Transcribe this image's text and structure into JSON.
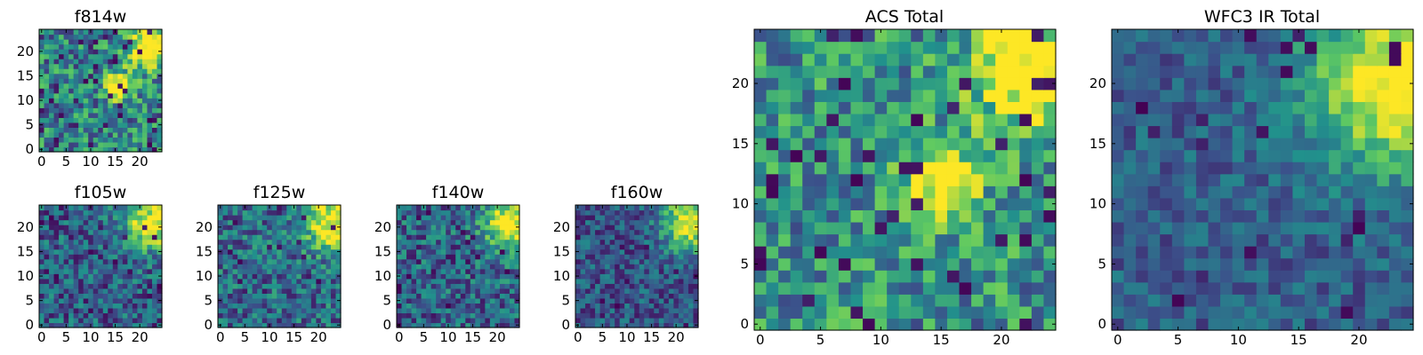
{
  "colormap": [
    "#440154",
    "#3b528b",
    "#21918c",
    "#5ec962",
    "#fde725"
  ],
  "chart_data": [
    {
      "id": "f814w",
      "type": "heatmap",
      "title": "f814w",
      "grid": [
        25,
        25
      ],
      "xlim": [
        -0.5,
        24.5
      ],
      "ylim": [
        -0.5,
        24.5
      ],
      "xticks": [
        0,
        5,
        10,
        15,
        20
      ],
      "yticks": [
        0,
        5,
        10,
        15,
        20
      ],
      "bright_spots": [
        {
          "x": 22,
          "y": 21,
          "r": 3
        },
        {
          "x": 16,
          "y": 13,
          "r": 2
        }
      ],
      "base_level": 0.45,
      "noise": 0.3,
      "dark_cells": 0.06
    },
    {
      "id": "f105w",
      "type": "heatmap",
      "title": "f105w",
      "grid": [
        25,
        25
      ],
      "xlim": [
        -0.5,
        24.5
      ],
      "ylim": [
        -0.5,
        24.5
      ],
      "xticks": [
        0,
        5,
        10,
        15,
        20
      ],
      "yticks": [
        0,
        5,
        10,
        15,
        20
      ],
      "bright_spots": [
        {
          "x": 23,
          "y": 21,
          "r": 4
        }
      ],
      "base_level": 0.3,
      "noise": 0.25,
      "dark_cells": 0.06
    },
    {
      "id": "f125w",
      "type": "heatmap",
      "title": "f125w",
      "grid": [
        25,
        25
      ],
      "xlim": [
        -0.5,
        24.5
      ],
      "ylim": [
        -0.5,
        24.5
      ],
      "xticks": [
        0,
        5,
        10,
        15,
        20
      ],
      "yticks": [
        0,
        5,
        10,
        15,
        20
      ],
      "bright_spots": [
        {
          "x": 23,
          "y": 21,
          "r": 4
        }
      ],
      "base_level": 0.35,
      "noise": 0.25,
      "dark_cells": 0.04
    },
    {
      "id": "f140w",
      "type": "heatmap",
      "title": "f140w",
      "grid": [
        25,
        25
      ],
      "xlim": [
        -0.5,
        24.5
      ],
      "ylim": [
        -0.5,
        24.5
      ],
      "xticks": [
        0,
        5,
        10,
        15,
        20
      ],
      "yticks": [
        0,
        5,
        10,
        15,
        20
      ],
      "bright_spots": [
        {
          "x": 23,
          "y": 21,
          "r": 4
        }
      ],
      "base_level": 0.33,
      "noise": 0.25,
      "dark_cells": 0.05
    },
    {
      "id": "f160w",
      "type": "heatmap",
      "title": "f160w",
      "grid": [
        25,
        25
      ],
      "xlim": [
        -0.5,
        24.5
      ],
      "ylim": [
        -0.5,
        24.5
      ],
      "xticks": [
        0,
        5,
        10,
        15,
        20
      ],
      "yticks": [
        0,
        5,
        10,
        15,
        20
      ],
      "bright_spots": [
        {
          "x": 23,
          "y": 21,
          "r": 4
        }
      ],
      "base_level": 0.27,
      "noise": 0.2,
      "dark_cells": 0.04
    },
    {
      "id": "acs_total",
      "type": "heatmap",
      "title": "ACS Total",
      "grid": [
        25,
        25
      ],
      "xlim": [
        -0.5,
        24.5
      ],
      "ylim": [
        -0.5,
        24.5
      ],
      "xticks": [
        0,
        5,
        10,
        15,
        20
      ],
      "yticks": [
        0,
        5,
        10,
        15,
        20
      ],
      "bright_spots": [
        {
          "x": 22,
          "y": 21,
          "r": 3
        },
        {
          "x": 15,
          "y": 12,
          "r": 2
        }
      ],
      "base_level": 0.5,
      "noise": 0.28,
      "dark_cells": 0.06
    },
    {
      "id": "wfc3_ir_total",
      "type": "heatmap",
      "title": "WFC3 IR Total",
      "grid": [
        25,
        25
      ],
      "xlim": [
        -0.5,
        24.5
      ],
      "ylim": [
        -0.5,
        24.5
      ],
      "xticks": [
        0,
        5,
        10,
        15,
        20
      ],
      "yticks": [
        0,
        5,
        10,
        15,
        20
      ],
      "bright_spots": [
        {
          "x": 23,
          "y": 20,
          "r": 5
        }
      ],
      "base_level": 0.3,
      "noise": 0.15,
      "dark_cells": 0.03
    }
  ]
}
